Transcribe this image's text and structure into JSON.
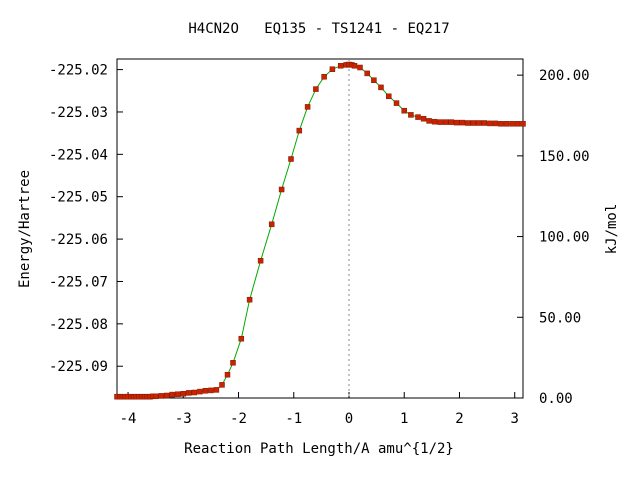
{
  "chart_data": {
    "type": "line",
    "title": "H4CN2O   EQ135 - TS1241 - EQ217",
    "xlabel": "Reaction Path Length/A amu^{1/2}",
    "ylabel": "Energy/Hartree",
    "y2label": "kJ/mol",
    "xlim": [
      -4.2,
      3.15
    ],
    "ylim": [
      -225.0975,
      -225.0175
    ],
    "y2lim": [
      0,
      210
    ],
    "x_ticks": [
      -4,
      -3,
      -2,
      -1,
      0,
      1,
      2,
      3
    ],
    "x_tick_labels": [
      "-4",
      "-3",
      "-2",
      "-1",
      "0",
      "1",
      "2",
      "3"
    ],
    "y_ticks": [
      -225.02,
      -225.03,
      -225.04,
      -225.05,
      -225.06,
      -225.07,
      -225.08,
      -225.09
    ],
    "y_tick_labels": [
      "-225.02",
      "-225.03",
      "-225.04",
      "-225.05",
      "-225.06",
      "-225.07",
      "-225.08",
      "-225.09"
    ],
    "y2_ticks": [
      0,
      50,
      100,
      150,
      200
    ],
    "y2_tick_labels": [
      "0.00",
      "50.00",
      "100.00",
      "150.00",
      "200.00"
    ],
    "ts_marker_x": 0,
    "grid": false,
    "line_color": "#00aa00",
    "marker_color": "#cc2200",
    "ts_line_color": "#888888",
    "series": [
      {
        "x": [
          -4.2,
          -4.15,
          -4.1,
          -4.05,
          -4.0,
          -3.95,
          -3.9,
          -3.85,
          -3.8,
          -3.75,
          -3.7,
          -3.65,
          -3.6,
          -3.55,
          -3.5,
          -3.4,
          -3.3,
          -3.2,
          -3.1,
          -3.0,
          -2.9,
          -2.8,
          -2.7,
          -2.6,
          -2.5,
          -2.4,
          -2.3,
          -2.2,
          -2.1,
          -1.95,
          -1.8,
          -1.6,
          -1.4,
          -1.22,
          -1.05,
          -0.9,
          -0.75,
          -0.6,
          -0.45,
          -0.3,
          -0.15,
          -0.05,
          0.0,
          0.05,
          0.1,
          0.2,
          0.33,
          0.45,
          0.58,
          0.72,
          0.86,
          1.0,
          1.12,
          1.25,
          1.35,
          1.45,
          1.55,
          1.65,
          1.75,
          1.85,
          1.95,
          2.05,
          2.15,
          2.25,
          2.35,
          2.45,
          2.55,
          2.65,
          2.75,
          2.85,
          2.95,
          3.05,
          3.15
        ],
        "y": [
          -225.0972,
          -225.0972,
          -225.0972,
          -225.0972,
          -225.0972,
          -225.0972,
          -225.0972,
          -225.0972,
          -225.0972,
          -225.0972,
          -225.0972,
          -225.0972,
          -225.0972,
          -225.0971,
          -225.0971,
          -225.097,
          -225.0969,
          -225.0967,
          -225.0966,
          -225.0965,
          -225.0963,
          -225.0962,
          -225.096,
          -225.0958,
          -225.0957,
          -225.0956,
          -225.0944,
          -225.092,
          -225.0892,
          -225.0835,
          -225.0743,
          -225.0651,
          -225.0565,
          -225.0483,
          -225.0411,
          -225.0344,
          -225.0288,
          -225.0246,
          -225.0217,
          -225.0199,
          -225.0191,
          -225.0189,
          -225.0188,
          -225.0189,
          -225.0191,
          -225.0195,
          -225.0209,
          -225.0225,
          -225.0242,
          -225.0263,
          -225.0279,
          -225.0297,
          -225.0307,
          -225.0312,
          -225.0316,
          -225.0321,
          -225.0323,
          -225.0324,
          -225.0324,
          -225.0324,
          -225.0325,
          -225.0325,
          -225.0326,
          -225.0326,
          -225.0326,
          -225.0326,
          -225.0327,
          -225.0327,
          -225.0328,
          -225.0328,
          -225.0328,
          -225.0328,
          -225.0328
        ]
      }
    ]
  }
}
